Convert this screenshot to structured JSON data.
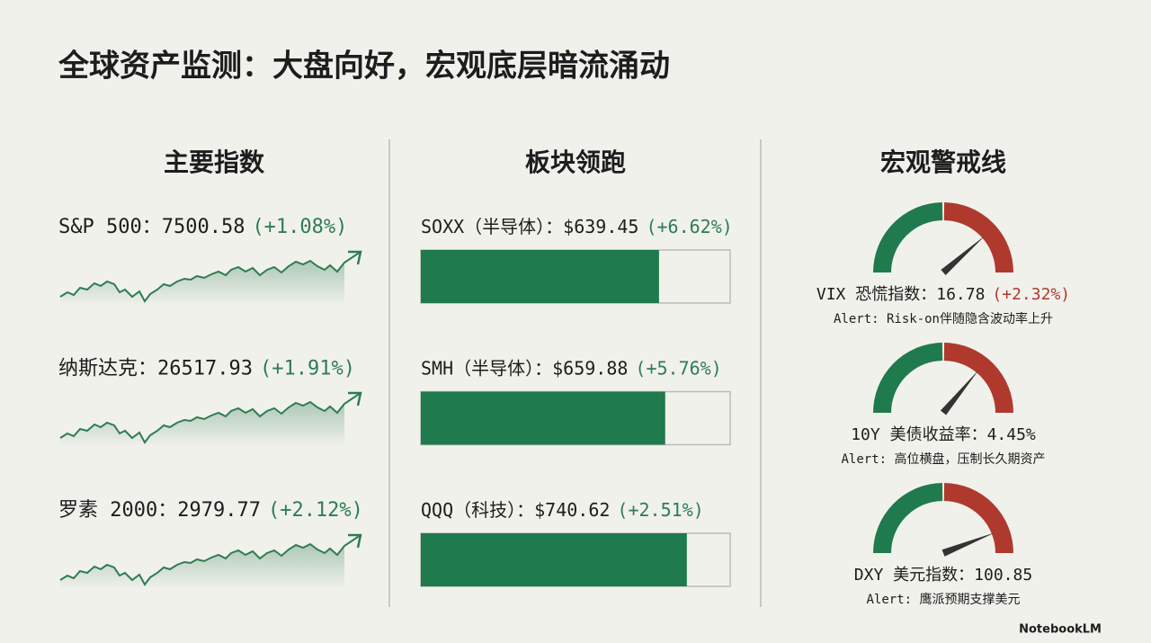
{
  "title": "全球资产监测：大盘向好，宏观底层暗流涌动",
  "columns": [
    {
      "heading": "主要指数",
      "items": [
        {
          "label": "S&P 500：",
          "value": "7500.58",
          "change": "(+1.08%)",
          "change_color": "#2e7d52"
        },
        {
          "label": "纳斯达克：",
          "value": "26517.93",
          "change": "(+1.91%)",
          "change_color": "#2e7d52"
        },
        {
          "label": "罗素 2000：",
          "value": "2979.77",
          "change": "(+2.12%)",
          "change_color": "#2e7d52"
        }
      ]
    },
    {
      "heading": "板块领跑",
      "items": [
        {
          "label": "SOXX（半导体）：",
          "value": "$639.45",
          "change": "(+6.62%)",
          "change_color": "#2e7d52",
          "fill": 0.77
        },
        {
          "label": "SMH（半导体）：",
          "value": "$659.88",
          "change": "(+5.76%)",
          "change_color": "#2e7d52",
          "fill": 0.79
        },
        {
          "label": "QQQ（科技）：",
          "value": "$740.62",
          "change": "(+2.51%)",
          "change_color": "#2e7d52",
          "fill": 0.86
        }
      ]
    },
    {
      "heading": "宏观警戒线",
      "items": [
        {
          "label": "VIX 恐慌指数：",
          "value": "16.78",
          "change": "(+2.32%)",
          "change_color": "#b0392e",
          "alert": "Alert: Risk-on伴随隐含波动率上升",
          "needle": 0.77
        },
        {
          "label": "10Y 美债收益率：",
          "value": "4.45%",
          "alert": "Alert: 高位横盘，压制长久期资产",
          "needle": 0.72
        },
        {
          "label": "DXY 美元指数：",
          "value": "100.85",
          "alert": "Alert: 鹰派预期支撑美元",
          "needle": 0.88
        }
      ]
    }
  ],
  "footer": "NotebookLM"
}
